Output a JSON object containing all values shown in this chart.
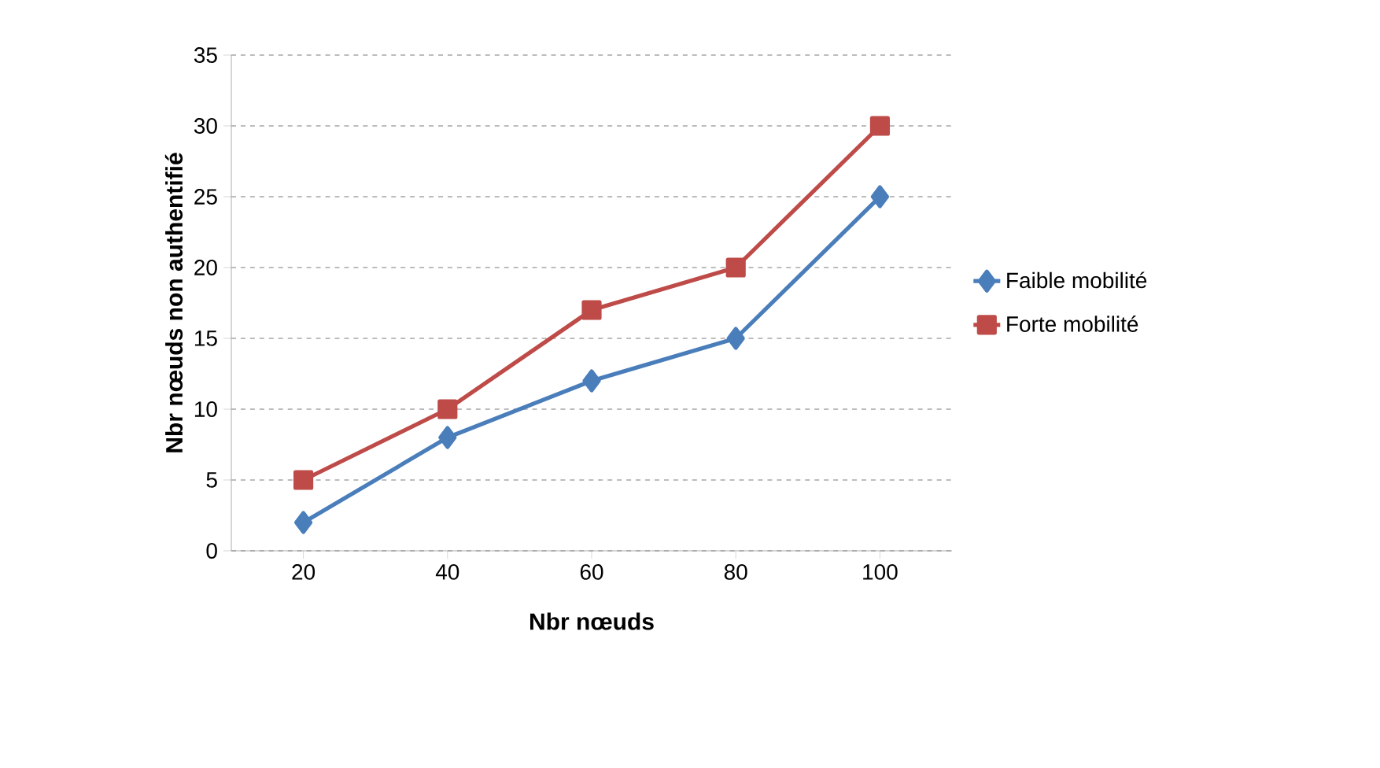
{
  "chart_data": {
    "type": "line",
    "xlabel": "Nbr nœuds",
    "ylabel": "Nbr nœuds non authentifié",
    "categories": [
      "20",
      "40",
      "60",
      "80",
      "100"
    ],
    "series": [
      {
        "name": "Faible mobilité",
        "color": "#4a7ebb",
        "marker": "diamond",
        "values": [
          2,
          8,
          12,
          15,
          25
        ]
      },
      {
        "name": "Forte mobilité",
        "color": "#be4b48",
        "marker": "square",
        "values": [
          5,
          10,
          17,
          20,
          30
        ]
      }
    ],
    "ylim": [
      0,
      35
    ],
    "yticks": [
      0,
      5,
      10,
      15,
      20,
      25,
      30,
      35
    ],
    "grid": "y",
    "legend": "right",
    "line_style": "solid"
  }
}
